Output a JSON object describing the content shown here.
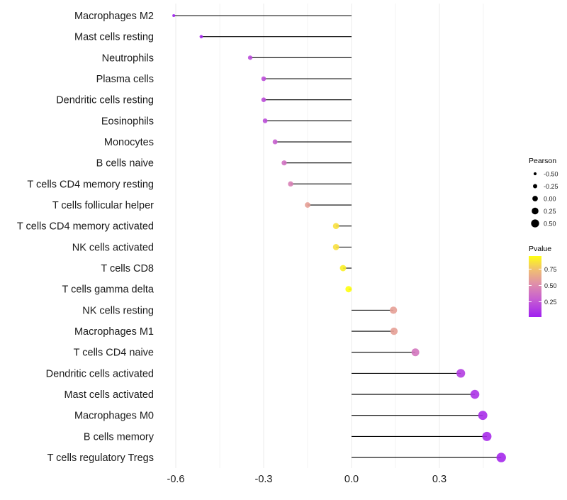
{
  "chart_data": {
    "type": "lollipop",
    "xlabel": "",
    "ylabel": "",
    "xlim": [
      -0.63,
      0.54
    ],
    "x_ticks": [
      -0.6,
      -0.3,
      0.0,
      0.3
    ],
    "x_tick_labels": [
      "-0.6",
      "-0.3",
      "0.0",
      "0.3"
    ],
    "grid": true,
    "categories": [
      "Macrophages M2",
      "Mast cells resting",
      "Neutrophils",
      "Plasma cells",
      "Dendritic cells resting",
      "Eosinophils",
      "Monocytes",
      "B cells naive",
      "T cells CD4 memory resting",
      "T cells follicular helper",
      "T cells CD4 memory activated",
      "NK cells activated",
      "T cells CD8",
      "T cells gamma delta",
      "NK cells resting",
      "Macrophages M1",
      "T cells CD4 naive",
      "Dendritic cells activated",
      "Mast cells activated",
      "Macrophages M0",
      "B cells memory",
      "T cells regulatory  Tregs"
    ],
    "pearson": [
      -0.607,
      -0.513,
      -0.346,
      -0.3,
      -0.3,
      -0.295,
      -0.261,
      -0.23,
      -0.208,
      -0.15,
      -0.053,
      -0.053,
      -0.029,
      -0.01,
      0.143,
      0.145,
      0.218,
      0.373,
      0.421,
      0.448,
      0.462,
      0.511
    ],
    "pvalue": [
      0.02,
      0.05,
      0.2,
      0.22,
      0.22,
      0.22,
      0.3,
      0.38,
      0.45,
      0.6,
      0.85,
      0.85,
      0.9,
      0.95,
      0.6,
      0.6,
      0.4,
      0.15,
      0.1,
      0.08,
      0.07,
      0.05
    ],
    "legend_size": {
      "title": "Pearson",
      "values": [
        -0.5,
        -0.25,
        0.0,
        0.25,
        0.5
      ],
      "labels": [
        "-0.50",
        "-0.25",
        "0.00",
        "0.25",
        "0.50"
      ],
      "placement": "right"
    },
    "legend_color": {
      "title": "Pvalue",
      "ticks": [
        0.25,
        0.5,
        0.75
      ],
      "labels": [
        "0.25",
        "0.50",
        "0.75"
      ],
      "range": [
        0.017,
        0.95
      ],
      "low_color": "#A020F0",
      "high_color": "#FFFF00",
      "placement": "right"
    }
  }
}
